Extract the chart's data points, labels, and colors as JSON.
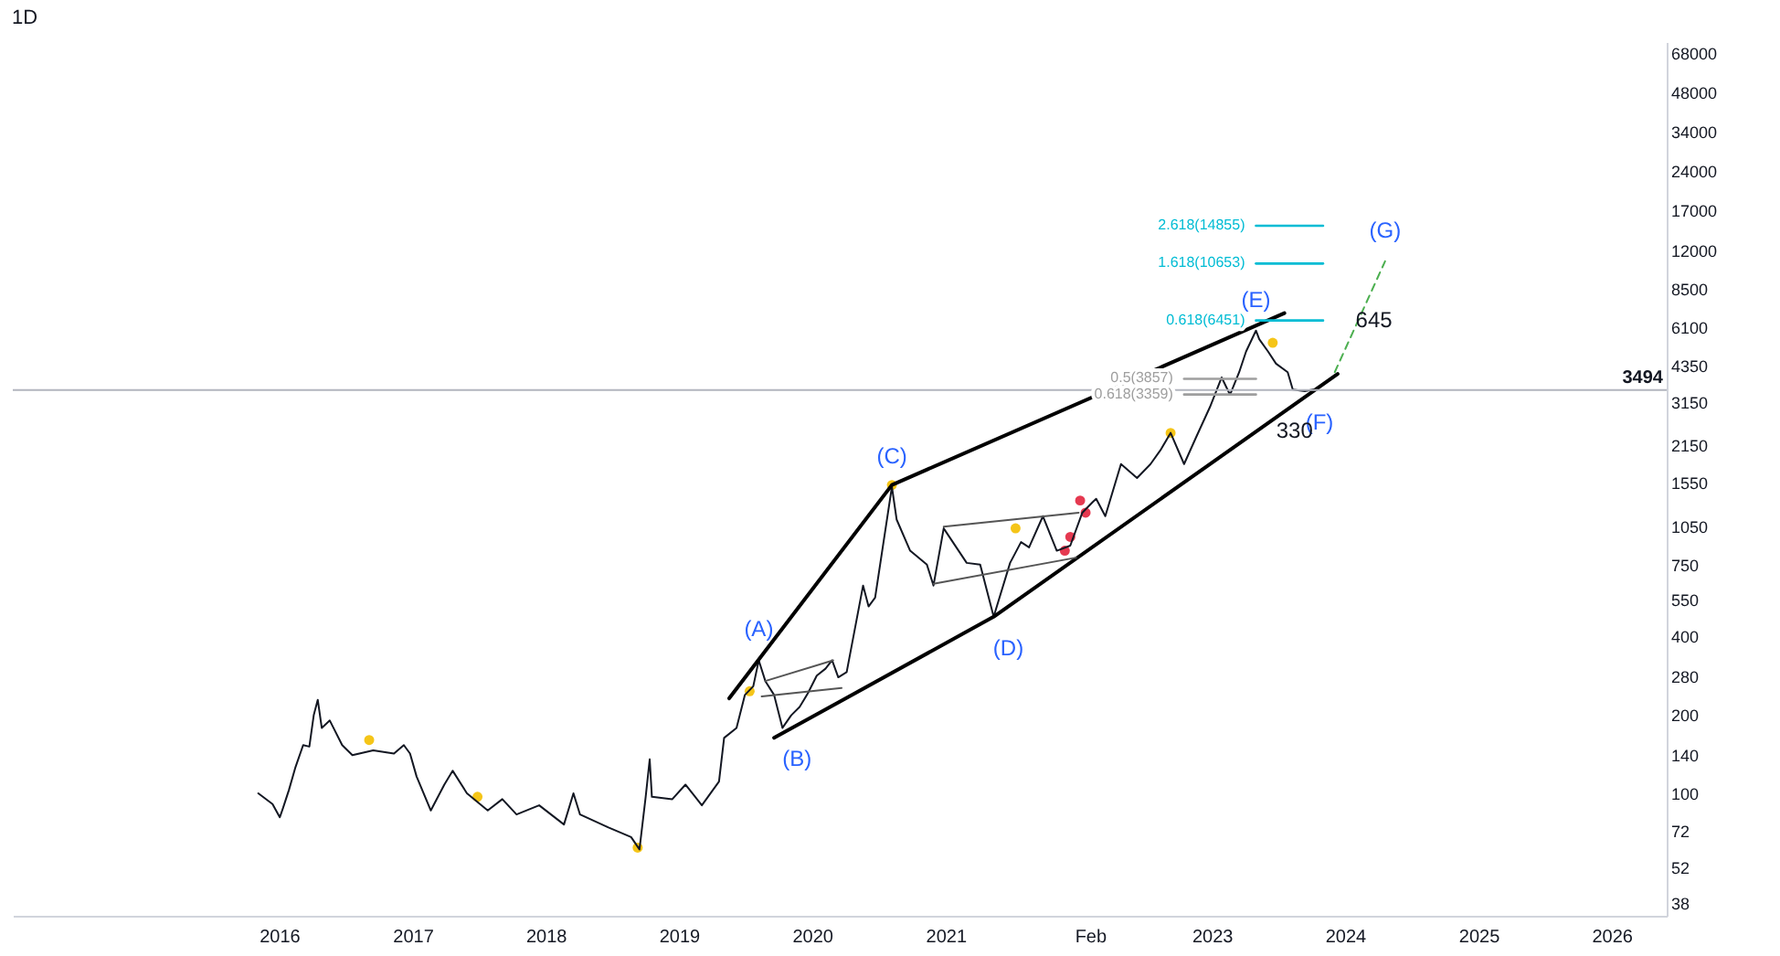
{
  "chart_data": {
    "type": "line",
    "title": "1D",
    "log": "y",
    "grid": false,
    "marker": "none",
    "line_style": "solid",
    "xlim": [
      "2014-01",
      "2026-06"
    ],
    "xticks": [
      "2016",
      "2017",
      "2018",
      "2019",
      "2020",
      "2021",
      {
        "value": "2022-02",
        "label": "Feb"
      },
      "2023",
      "2024",
      "2025",
      "2026"
    ],
    "ylim": [
      34,
      75000
    ],
    "yticks": [
      38,
      52,
      72,
      100,
      140,
      200,
      280,
      400,
      550,
      750,
      1050,
      1550,
      2150,
      3150,
      4350,
      6100,
      8500,
      12000,
      17000,
      24000,
      34000,
      48000,
      68000
    ],
    "series": [
      {
        "color": "#131722",
        "x": [
          "2015-11-05",
          "2015-12-14",
          "2016-01-03",
          "2016-01-12",
          "2016-01-28",
          "2016-02-15",
          "2016-03-07",
          "2016-03-24",
          "2016-04-05",
          "2016-04-16",
          "2016-04-27",
          "2016-05-19",
          "2016-06-22",
          "2016-07-20",
          "2016-09-15",
          "2016-11-11",
          "2016-12-08",
          "2016-12-25",
          "2017-01-12",
          "2017-02-20",
          "2017-03-29",
          "2017-04-21",
          "2017-05-30",
          "2017-07-26",
          "2017-09-04",
          "2017-10-13",
          "2017-12-14",
          "2018-02-20",
          "2018-03-18",
          "2018-04-05",
          "2018-06-22",
          "2018-08-23",
          "2018-09-15",
          "2018-10-02",
          "2018-10-13",
          "2018-10-19",
          "2018-12-14",
          "2019-01-19",
          "2019-03-05",
          "2019-04-21",
          "2019-05-05",
          "2019-06-08",
          "2019-07-01",
          "2019-07-24",
          "2019-08-08",
          "2019-08-26",
          "2019-09-19",
          "2019-10-12",
          "2019-11-05",
          "2019-11-28",
          "2019-12-21",
          "2020-01-14",
          "2020-02-07",
          "2020-02-25",
          "2020-03-13",
          "2020-04-05",
          "2020-05-20",
          "2020-06-04",
          "2020-06-22",
          "2020-08-07",
          "2020-08-20",
          "2020-09-26",
          "2020-11-11",
          "2020-11-29",
          "2020-12-27",
          "2021-02-28",
          "2021-04-06",
          "2021-05-13",
          "2021-06-27",
          "2021-07-27",
          "2021-08-18",
          "2021-09-25",
          "2021-11-02",
          "2021-12-09",
          "2022-01-11",
          "2022-02-08",
          "2022-02-18",
          "2022-03-15",
          "2022-04-27",
          "2022-06-10",
          "2022-07-17",
          "2022-08-13",
          "2022-09-10",
          "2022-10-17",
          "2022-11-18",
          "2022-12-27",
          "2023-01-28",
          "2023-02-20",
          "2023-03-17",
          "2023-04-05",
          "2023-05-02",
          "2023-05-11",
          "2023-06-04",
          "2023-06-26",
          "2023-07-28",
          "2023-08-11",
          "2023-09-13",
          "2023-10-05",
          "2023-10-15"
        ],
        "values": [
          100,
          91,
          81,
          88,
          103,
          126,
          153,
          151,
          199,
          228,
          178,
          190,
          153,
          140,
          146,
          142,
          153,
          142,
          116,
          86,
          108,
          122,
          100,
          86,
          95,
          83,
          90,
          76,
          100,
          83,
          74,
          68,
          61,
          97,
          135,
          97,
          95,
          108,
          90,
          111,
          163,
          178,
          238,
          257,
          323,
          269,
          238,
          178,
          199,
          214,
          242,
          282,
          300,
          323,
          278,
          291,
          624,
          519,
          561,
          1490,
          1116,
          848,
          750,
          624,
          1033,
          762,
          750,
          474,
          762,
          915,
          874,
          1150,
          848,
          887,
          1186,
          1300,
          1340,
          1150,
          1820,
          1610,
          1820,
          2055,
          2395,
          1820,
          2290,
          3010,
          3905,
          3350,
          4090,
          4910,
          5900,
          5470,
          4910,
          4410,
          4090,
          3510,
          3460,
          3510,
          3494
        ]
      },
      {
        "color": "#000000",
        "x": [
          "2019-05-19",
          "2020-08-07",
          "2023-07-19"
        ],
        "values": [
          231,
          1514,
          6880
        ]
      },
      {
        "color": "#000000",
        "x": [
          "2019-09-19",
          "2021-05-13",
          "2023-12-12"
        ],
        "values": [
          163,
          474,
          4025
        ]
      },
      {
        "color": "#555555",
        "x": [
          "2019-08-26",
          "2020-02-28"
        ],
        "values": [
          269,
          323
        ]
      },
      {
        "color": "#555555",
        "x": [
          "2019-08-16",
          "2020-03-22"
        ],
        "values": [
          235,
          253
        ]
      },
      {
        "color": "#555555",
        "x": [
          "2020-12-27",
          "2022-01-01"
        ],
        "values": [
          1049,
          1186
        ]
      },
      {
        "color": "#555555",
        "x": [
          "2020-11-29",
          "2021-12-25"
        ],
        "values": [
          634,
          798
        ]
      },
      {
        "color": "#4caf50",
        "line_style": "dashed",
        "x": [
          "2023-12-04",
          "2024-04-20"
        ],
        "values": [
          4090,
          10870
        ]
      },
      {
        "name": "2.618(14855)",
        "color": "#00bcd4",
        "x": [
          "2023-05-02",
          "2023-11-02"
        ],
        "values": [
          14855,
          14855
        ]
      },
      {
        "name": "1.618(10653)",
        "color": "#00bcd4",
        "x": [
          "2023-05-02",
          "2023-11-02"
        ],
        "values": [
          10653,
          10653
        ]
      },
      {
        "name": "0.618(6451)",
        "color": "#00bcd4",
        "x": [
          "2023-05-02",
          "2023-11-02"
        ],
        "values": [
          6451,
          6451
        ]
      },
      {
        "name": "0.5(3857)",
        "color": "#9e9e9e",
        "x": [
          "2022-10-17",
          "2023-05-02"
        ],
        "values": [
          3857,
          3857
        ]
      },
      {
        "name": "0.618(3359)",
        "color": "#9e9e9e",
        "x": [
          "2022-10-17",
          "2023-05-02"
        ],
        "values": [
          3359,
          3359
        ]
      },
      {
        "type": "scatter",
        "marker": "circle",
        "color": "#f5c518",
        "x": [
          "2016-09-04",
          "2017-06-28",
          "2018-09-10",
          "2019-07-14",
          "2020-08-07",
          "2021-07-12",
          "2022-09-10",
          "2023-06-17"
        ],
        "values": [
          160,
          97,
          62,
          246,
          1514,
          1033,
          2395,
          5300
        ]
      },
      {
        "type": "scatter",
        "marker": "circle",
        "color": "#e53950",
        "x": [
          "2021-11-24",
          "2021-12-09",
          "2022-01-05",
          "2022-01-20"
        ],
        "values": [
          848,
          958,
          1320,
          1186
        ]
      }
    ],
    "ref_lines": [
      {
        "axis": "y",
        "value": 3494,
        "label": "3494",
        "color": "#b2b5be"
      }
    ],
    "annotations": [
      {
        "text": "(A)",
        "x": "2019-08-08",
        "y": 323
      },
      {
        "text": "(B)",
        "x": "2019-10-12",
        "y": 178
      },
      {
        "text": "(C)",
        "x": "2020-08-07",
        "y": 1490
      },
      {
        "text": "(D)",
        "x": "2021-05-13",
        "y": 474
      },
      {
        "text": "(E)",
        "x": "2023-05-02",
        "y": 5900
      },
      {
        "text": "(F)",
        "x": "2023-09-13",
        "y": 3460
      },
      {
        "text": "(G)",
        "x": "2024-04-20",
        "y": 10870
      },
      "645",
      "330"
    ]
  }
}
